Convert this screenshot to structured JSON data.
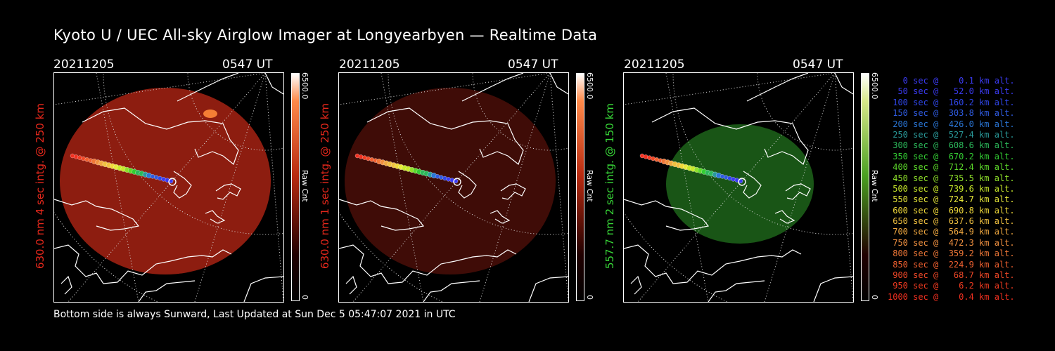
{
  "title": "Kyoto U / UEC All-sky Airglow Imager at Longyearbyen — Realtime Data",
  "footer": "Bottom side is always Sunward, Last Updated at Sun Dec  5 05:47:07 2021 in UTC",
  "panels": [
    {
      "date": "20211205",
      "time": "0547 UT",
      "ylabel": "630.0 nm  4 sec intg. @ 250 km",
      "ylabel_color": "#e8281c",
      "cbar_max": "6500.0",
      "cbar_min": "0",
      "cbar_label": "Raw Cnt",
      "cbar_top": "#ff8a4a",
      "cbar_mid": "#b82a10",
      "sky_color": "#b52514",
      "sky_opacity": 0.78
    },
    {
      "date": "20211205",
      "time": "0547 UT",
      "ylabel": "630.0 nm  1 sec intg. @ 250 km",
      "ylabel_color": "#e8281c",
      "cbar_max": "6500.0",
      "cbar_min": "0",
      "cbar_label": "Raw Cnt",
      "cbar_top": "#ff8a4a",
      "cbar_mid": "#b82a10",
      "sky_color": "#4a0e08",
      "sky_opacity": 0.85
    },
    {
      "date": "20211205",
      "time": "0547 UT",
      "ylabel": "557.7 nm  2 sec intg. @ 150 km",
      "ylabel_color": "#38d838",
      "cbar_max": "6500.0",
      "cbar_min": "0",
      "cbar_label": "Raw Cnt",
      "cbar_top": "#d8e88a",
      "cbar_mid": "#4aa020",
      "sky_color": "#1f6a1c",
      "sky_opacity": 0.8
    }
  ],
  "legend": [
    {
      "text": "   0 sec @    0.1 km alt.",
      "color": "#3b3bf2"
    },
    {
      "text": "  50 sec @   52.0 km alt.",
      "color": "#3b3bf2"
    },
    {
      "text": " 100 sec @  160.2 km alt.",
      "color": "#2f46e8"
    },
    {
      "text": " 150 sec @  303.8 km alt.",
      "color": "#2f5be0"
    },
    {
      "text": " 200 sec @  426.0 km alt.",
      "color": "#2a76d6"
    },
    {
      "text": " 250 sec @  527.4 km alt.",
      "color": "#2a9a9a"
    },
    {
      "text": " 300 sec @  608.6 km alt.",
      "color": "#2bb85a"
    },
    {
      "text": " 350 sec @  670.2 km alt.",
      "color": "#33cc33"
    },
    {
      "text": " 400 sec @  712.4 km alt.",
      "color": "#5cd82a"
    },
    {
      "text": " 450 sec @  735.5 km alt.",
      "color": "#8fe02a"
    },
    {
      "text": " 500 sec @  739.6 km alt.",
      "color": "#c8e82a"
    },
    {
      "text": " 550 sec @  724.7 km alt.",
      "color": "#e8e83a"
    },
    {
      "text": " 600 sec @  690.8 km alt.",
      "color": "#f0d83a"
    },
    {
      "text": " 650 sec @  637.6 km alt.",
      "color": "#f0c040"
    },
    {
      "text": " 700 sec @  564.9 km alt.",
      "color": "#f0a840"
    },
    {
      "text": " 750 sec @  472.3 km alt.",
      "color": "#f09040"
    },
    {
      "text": " 800 sec @  359.2 km alt.",
      "color": "#f07838"
    },
    {
      "text": " 850 sec @  224.9 km alt.",
      "color": "#f06030"
    },
    {
      "text": " 900 sec @   68.7 km alt.",
      "color": "#f04828"
    },
    {
      "text": " 950 sec @    6.2 km alt.",
      "color": "#f03a20"
    },
    {
      "text": "1000 sec @    0.4 km alt.",
      "color": "#f03020"
    }
  ]
}
